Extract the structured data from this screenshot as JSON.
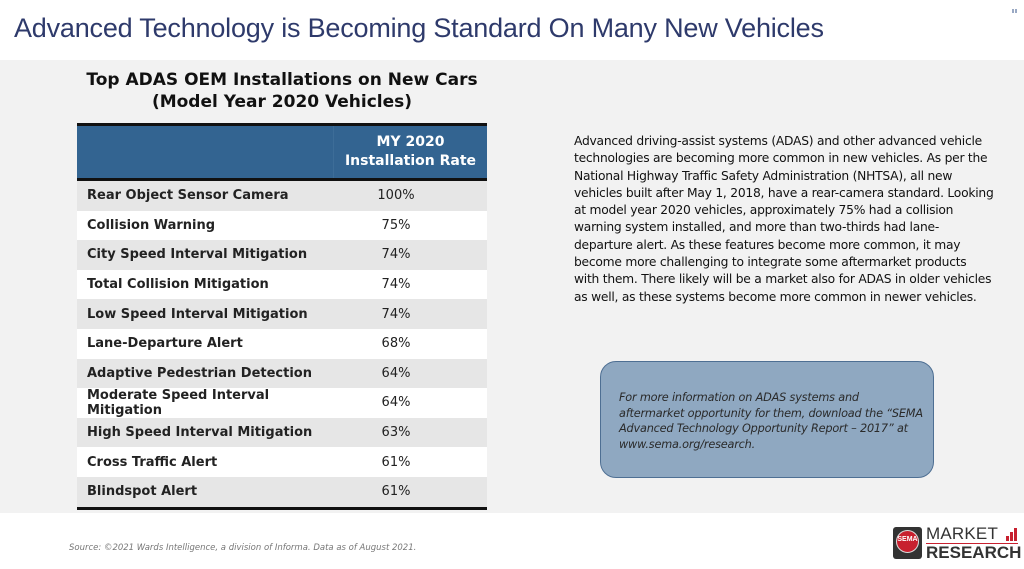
{
  "page": {
    "title": "Advanced Technology is Becoming Standard On Many New Vehicles"
  },
  "table": {
    "title_line1": "Top ADAS OEM Installations on New Cars",
    "title_line2": "(Model Year 2020 Vehicles)",
    "header": {
      "col1": "",
      "col2_line1": "MY 2020",
      "col2_line2": "Installation Rate"
    },
    "rows": [
      {
        "label": "Rear Object Sensor Camera",
        "value": "100%"
      },
      {
        "label": "Collision Warning",
        "value": "75%"
      },
      {
        "label": "City Speed Interval Mitigation",
        "value": "74%"
      },
      {
        "label": "Total Collision Mitigation",
        "value": "74%"
      },
      {
        "label": "Low Speed Interval Mitigation",
        "value": "74%"
      },
      {
        "label": "Lane-Departure Alert",
        "value": "68%"
      },
      {
        "label": "Adaptive Pedestrian Detection",
        "value": "64%"
      },
      {
        "label": "Moderate Speed Interval Mitigation",
        "value": "64%"
      },
      {
        "label": "High Speed Interval Mitigation",
        "value": "63%"
      },
      {
        "label": "Cross Traffic Alert",
        "value": "61%"
      },
      {
        "label": "Blindspot Alert",
        "value": "61%"
      }
    ]
  },
  "body_text": "Advanced driving-assist systems (ADAS) and other advanced vehicle technologies are becoming more common in new vehicles. As per the National Highway Traffic Safety Administration (NHTSA), all new vehicles built after May 1, 2018, have a rear-camera standard. Looking at model year 2020 vehicles, approximately 75% had a collision warning system installed, and more than two-thirds had lane-departure alert. As these features become more common, it may become more challenging to integrate some aftermarket products with them. There likely will be a market also for ADAS in older vehicles as well, as these systems become more common in newer vehicles.",
  "callout": {
    "text": "For more information on ADAS systems and aftermarket opportunity for them, download the “SEMA Advanced Technology Opportunity Report – 2017” at www.sema.org/research."
  },
  "footer": {
    "source": "Source: ©2021 Wards Intelligence, a division of Informa. Data as of August 2021."
  },
  "logo": {
    "seal_text": "SEMA",
    "word1": "MARKET",
    "word2": "RESEARCH",
    "icon": "bar-chart-icon"
  },
  "colors": {
    "title": "#2e3a6b",
    "table_header": "#336491",
    "callout_fill": "#8fa8c1",
    "logo_red": "#c8202f"
  }
}
